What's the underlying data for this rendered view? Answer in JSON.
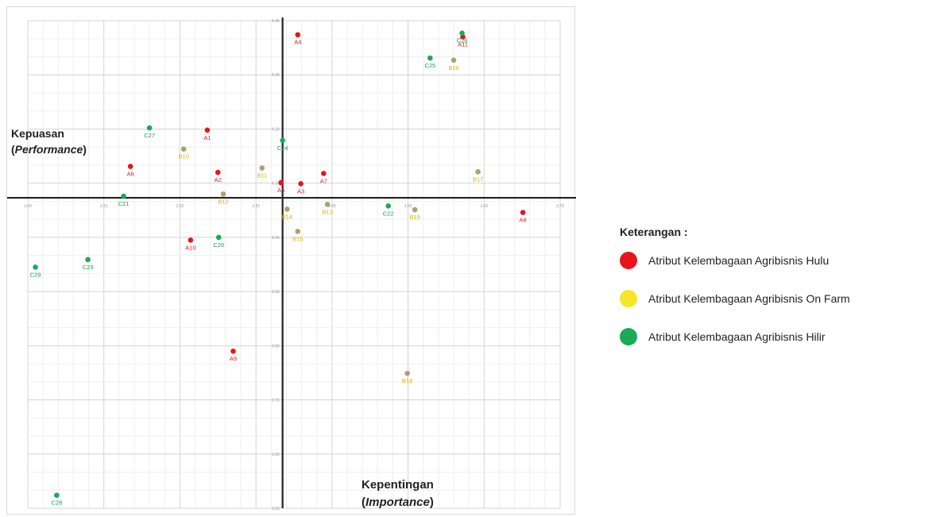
{
  "chart_data": {
    "type": "scatter",
    "title": "",
    "xlabel_prefix": "Kepentingan",
    "xlabel_italic": "Importance",
    "ylabel_prefix": "Kepuasan",
    "ylabel_italic": "Performance",
    "xlim": [
      3.0,
      3.7
    ],
    "ylim": [
      3.5,
      4.4
    ],
    "x_ticks": [
      "3.00",
      "3.10",
      "3.20",
      "3.30",
      "3.40",
      "3.50",
      "3.60",
      "3.70"
    ],
    "y_ticks": [
      "4.40",
      "4.30",
      "4.20",
      "4.10",
      "4.00",
      "3.90",
      "3.80",
      "3.70",
      "3.60",
      "3.50"
    ],
    "x_divider": 3.335,
    "y_divider": 4.073,
    "grid": true,
    "legend_position": "right",
    "legend_title": "Keterangan :",
    "series": [
      {
        "name": "Atribut Kelembagaan Agribisnis Hulu",
        "color": "#e8141b",
        "points": [
          {
            "label": "A1",
            "x": 3.236,
            "y": 4.198
          },
          {
            "label": "A2",
            "x": 3.25,
            "y": 4.12
          },
          {
            "label": "A3",
            "x": 3.359,
            "y": 4.099
          },
          {
            "label": "A4",
            "x": 3.355,
            "y": 4.374
          },
          {
            "label": "A5",
            "x": 3.333,
            "y": 4.101
          },
          {
            "label": "A6",
            "x": 3.135,
            "y": 4.131
          },
          {
            "label": "A7",
            "x": 3.389,
            "y": 4.118
          },
          {
            "label": "A8",
            "x": 3.651,
            "y": 4.046
          },
          {
            "label": "A9",
            "x": 3.27,
            "y": 3.79
          },
          {
            "label": "A10",
            "x": 3.214,
            "y": 3.995
          },
          {
            "label": "A11",
            "x": 3.572,
            "y": 4.37
          }
        ]
      },
      {
        "name": "Atribut Kelembagaan Agribisnis On Farm",
        "color": "#f5e62a",
        "points": [
          {
            "label": "B10",
            "x": 3.205,
            "y": 4.163
          },
          {
            "label": "B11",
            "x": 3.308,
            "y": 4.128
          },
          {
            "label": "B12",
            "x": 3.257,
            "y": 4.08
          },
          {
            "label": "B13",
            "x": 3.394,
            "y": 4.061
          },
          {
            "label": "B14",
            "x": 3.341,
            "y": 4.052
          },
          {
            "label": "B15",
            "x": 3.355,
            "y": 4.011
          },
          {
            "label": "B16",
            "x": 3.56,
            "y": 4.327
          },
          {
            "label": "B17",
            "x": 3.592,
            "y": 4.121
          },
          {
            "label": "B18",
            "x": 3.499,
            "y": 3.749
          },
          {
            "label": "B19",
            "x": 3.509,
            "y": 4.051
          }
        ]
      },
      {
        "name": "Atribut Kelembagaan Agribisnis Hilir",
        "color": "#1aaa58",
        "points": [
          {
            "label": "C20",
            "x": 3.251,
            "y": 4.0
          },
          {
            "label": "C21",
            "x": 3.126,
            "y": 4.076
          },
          {
            "label": "C22",
            "x": 3.474,
            "y": 4.058
          },
          {
            "label": "C23",
            "x": 3.079,
            "y": 3.959
          },
          {
            "label": "C24",
            "x": 3.335,
            "y": 4.179
          },
          {
            "label": "C25",
            "x": 3.529,
            "y": 4.331
          },
          {
            "label": "C26",
            "x": 3.571,
            "y": 4.377
          },
          {
            "label": "C27",
            "x": 3.16,
            "y": 4.202
          },
          {
            "label": "C28",
            "x": 3.038,
            "y": 3.524
          },
          {
            "label": "C29",
            "x": 3.01,
            "y": 3.945
          }
        ]
      }
    ]
  }
}
